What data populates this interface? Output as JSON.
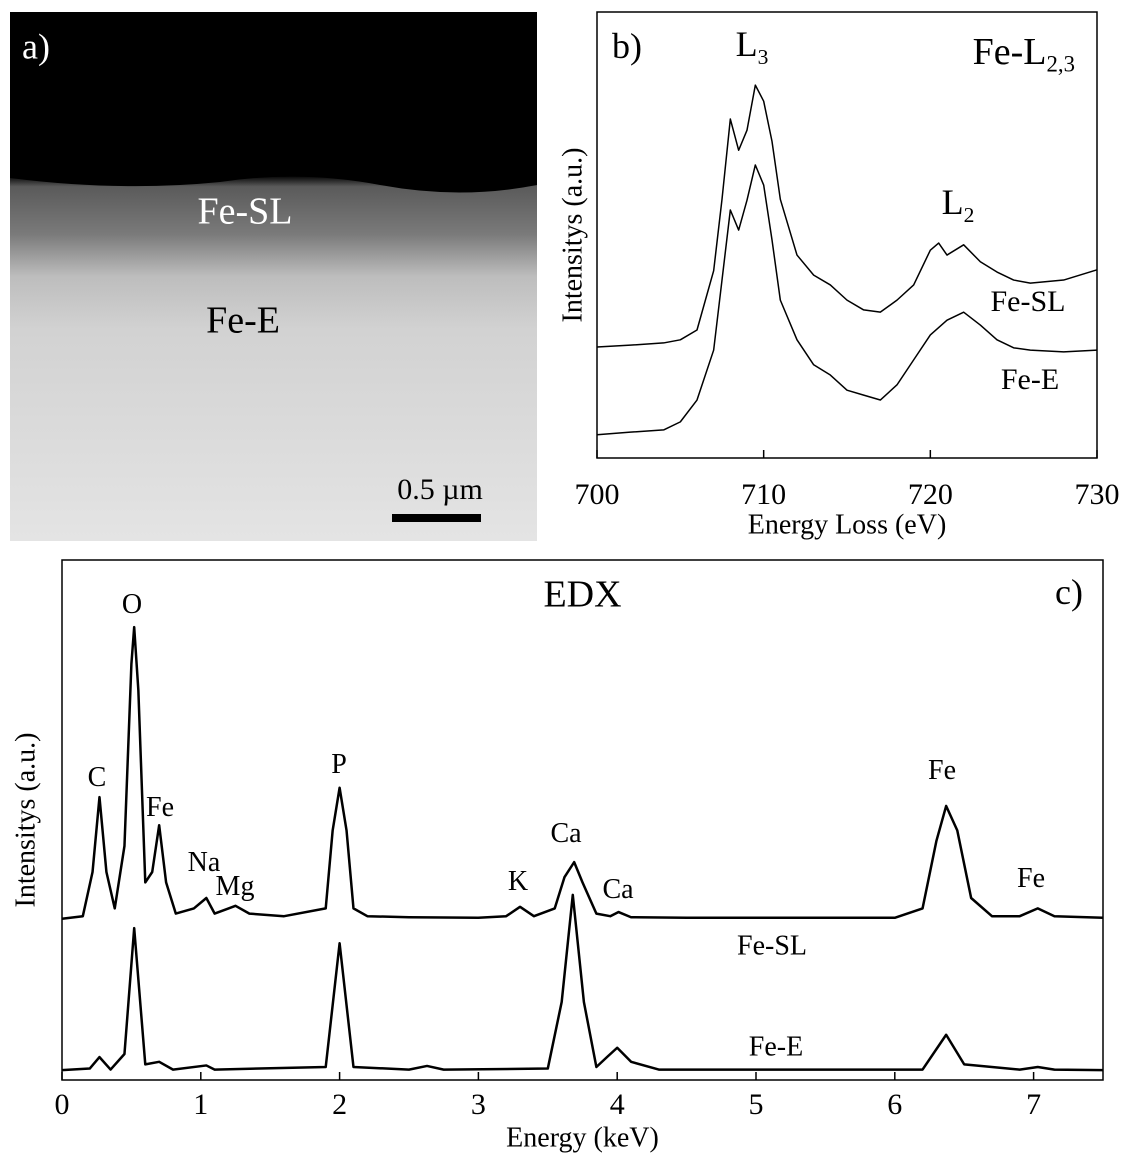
{
  "panel_a": {
    "label": "a)",
    "regions": [
      "Fe-SL",
      "Fe-E"
    ],
    "scale_bar": "0.5 µm"
  },
  "chart_data": [
    {
      "type": "line",
      "xlabel": "Energy Loss (eV)",
      "ylabel": "Intensitys (a.u.)",
      "xlim": [
        700,
        730
      ],
      "xticks": [
        700,
        710,
        720,
        730
      ],
      "ylim": [
        0,
        100
      ],
      "annotations": [
        {
          "text": "b)"
        },
        {
          "text": "L",
          "sub": "3"
        },
        {
          "text": "Fe-L",
          "sub": "2,3"
        },
        {
          "text": "L",
          "sub": "2"
        }
      ],
      "series": [
        {
          "name": "Fe-SL",
          "color": "#000000",
          "x": [
            700,
            702,
            704,
            705,
            706,
            707,
            707.5,
            708,
            708.5,
            709,
            709.5,
            710,
            710.5,
            711,
            712,
            713,
            714,
            715,
            716,
            717,
            718,
            719,
            720,
            720.5,
            721,
            722,
            723,
            724,
            725,
            726,
            728,
            730
          ],
          "values": [
            24.9,
            25.3,
            25.8,
            26.5,
            28.7,
            42,
            58,
            76,
            69,
            73.5,
            83.6,
            80,
            71,
            58,
            45.5,
            41,
            38.8,
            35.4,
            33.2,
            32.7,
            35.4,
            38.8,
            46.6,
            48.2,
            45.5,
            47.8,
            44,
            41.7,
            39.9,
            39.2,
            39.9,
            42.2
          ]
        },
        {
          "name": "Fe-E",
          "color": "#000000",
          "x": [
            700,
            702,
            704,
            705,
            706,
            707,
            707.5,
            708,
            708.5,
            709,
            709.5,
            710,
            710.5,
            711,
            712,
            713,
            714,
            715,
            716,
            717,
            718,
            719,
            720,
            721,
            722,
            723,
            724,
            725,
            726,
            728,
            730
          ],
          "values": [
            5.2,
            5.8,
            6.3,
            8.1,
            13,
            24.2,
            39.9,
            55.6,
            51.1,
            57.8,
            65.7,
            61.2,
            48.9,
            35.4,
            26.5,
            20.9,
            18.6,
            15.2,
            14.1,
            13,
            16.4,
            22,
            27.6,
            30.9,
            32.7,
            29.8,
            26.5,
            24.7,
            24.2,
            23.8,
            24.2
          ]
        }
      ]
    },
    {
      "type": "line",
      "title": "EDX",
      "xlabel": "Energy (keV)",
      "ylabel": "Intensitys (a.u.)",
      "xlim": [
        0,
        7.5
      ],
      "xticks": [
        0,
        1,
        2,
        3,
        4,
        5,
        6,
        7
      ],
      "ylim": [
        0,
        100
      ],
      "annotations": [
        {
          "text": "c)"
        },
        {
          "text": "C"
        },
        {
          "text": "O"
        },
        {
          "text": "Fe"
        },
        {
          "text": "Na"
        },
        {
          "text": "Mg"
        },
        {
          "text": "P"
        },
        {
          "text": "K"
        },
        {
          "text": "Ca"
        },
        {
          "text": "Ca"
        },
        {
          "text": "Fe"
        },
        {
          "text": "Fe"
        }
      ],
      "series": [
        {
          "name": "Fe-SL",
          "color": "#000000",
          "x": [
            0,
            0.15,
            0.22,
            0.27,
            0.32,
            0.38,
            0.45,
            0.5,
            0.52,
            0.55,
            0.6,
            0.65,
            0.7,
            0.75,
            0.82,
            0.95,
            1.04,
            1.1,
            1.2,
            1.25,
            1.35,
            1.6,
            1.9,
            1.95,
            2.0,
            2.05,
            2.1,
            2.2,
            2.5,
            3.0,
            3.2,
            3.3,
            3.4,
            3.55,
            3.62,
            3.69,
            3.75,
            3.85,
            3.95,
            4.01,
            4.1,
            4.5,
            5.0,
            5.5,
            6.0,
            6.2,
            6.3,
            6.37,
            6.45,
            6.55,
            6.7,
            6.9,
            7.03,
            7.15,
            7.5
          ],
          "values": [
            31,
            31.5,
            40,
            54.4,
            40,
            33,
            45,
            80,
            87.1,
            75,
            38,
            40,
            49,
            38,
            32,
            33,
            35,
            32,
            33,
            33.5,
            32,
            31.5,
            33,
            48,
            56.2,
            48,
            33,
            31.5,
            31.3,
            31.2,
            31.5,
            33.3,
            31.5,
            33,
            39,
            41.9,
            38,
            32,
            31.5,
            32.3,
            31.3,
            31.2,
            31.2,
            31.2,
            31.2,
            33,
            46,
            52.7,
            48,
            35,
            31.5,
            31.5,
            33,
            31.5,
            31.2
          ]
        },
        {
          "name": "Fe-E",
          "color": "#000000",
          "x": [
            0,
            0.2,
            0.27,
            0.35,
            0.45,
            0.52,
            0.6,
            0.7,
            0.8,
            1.04,
            1.1,
            1.9,
            2.0,
            2.1,
            2.5,
            2.63,
            2.75,
            3.5,
            3.6,
            3.68,
            3.76,
            3.85,
            3.93,
            4.0,
            4.1,
            4.3,
            6.2,
            6.37,
            6.5,
            6.9,
            7.03,
            7.15,
            7.5
          ],
          "values": [
            1.9,
            2.2,
            4.4,
            2,
            5,
            29.2,
            3,
            3.5,
            2,
            2.8,
            2,
            2.5,
            26.3,
            2.5,
            2,
            2.7,
            2,
            2.2,
            15,
            35.6,
            15,
            2.5,
            4.5,
            6.2,
            3.5,
            2,
            2,
            8.7,
            3,
            2,
            2.5,
            2,
            1.9
          ]
        }
      ]
    }
  ]
}
